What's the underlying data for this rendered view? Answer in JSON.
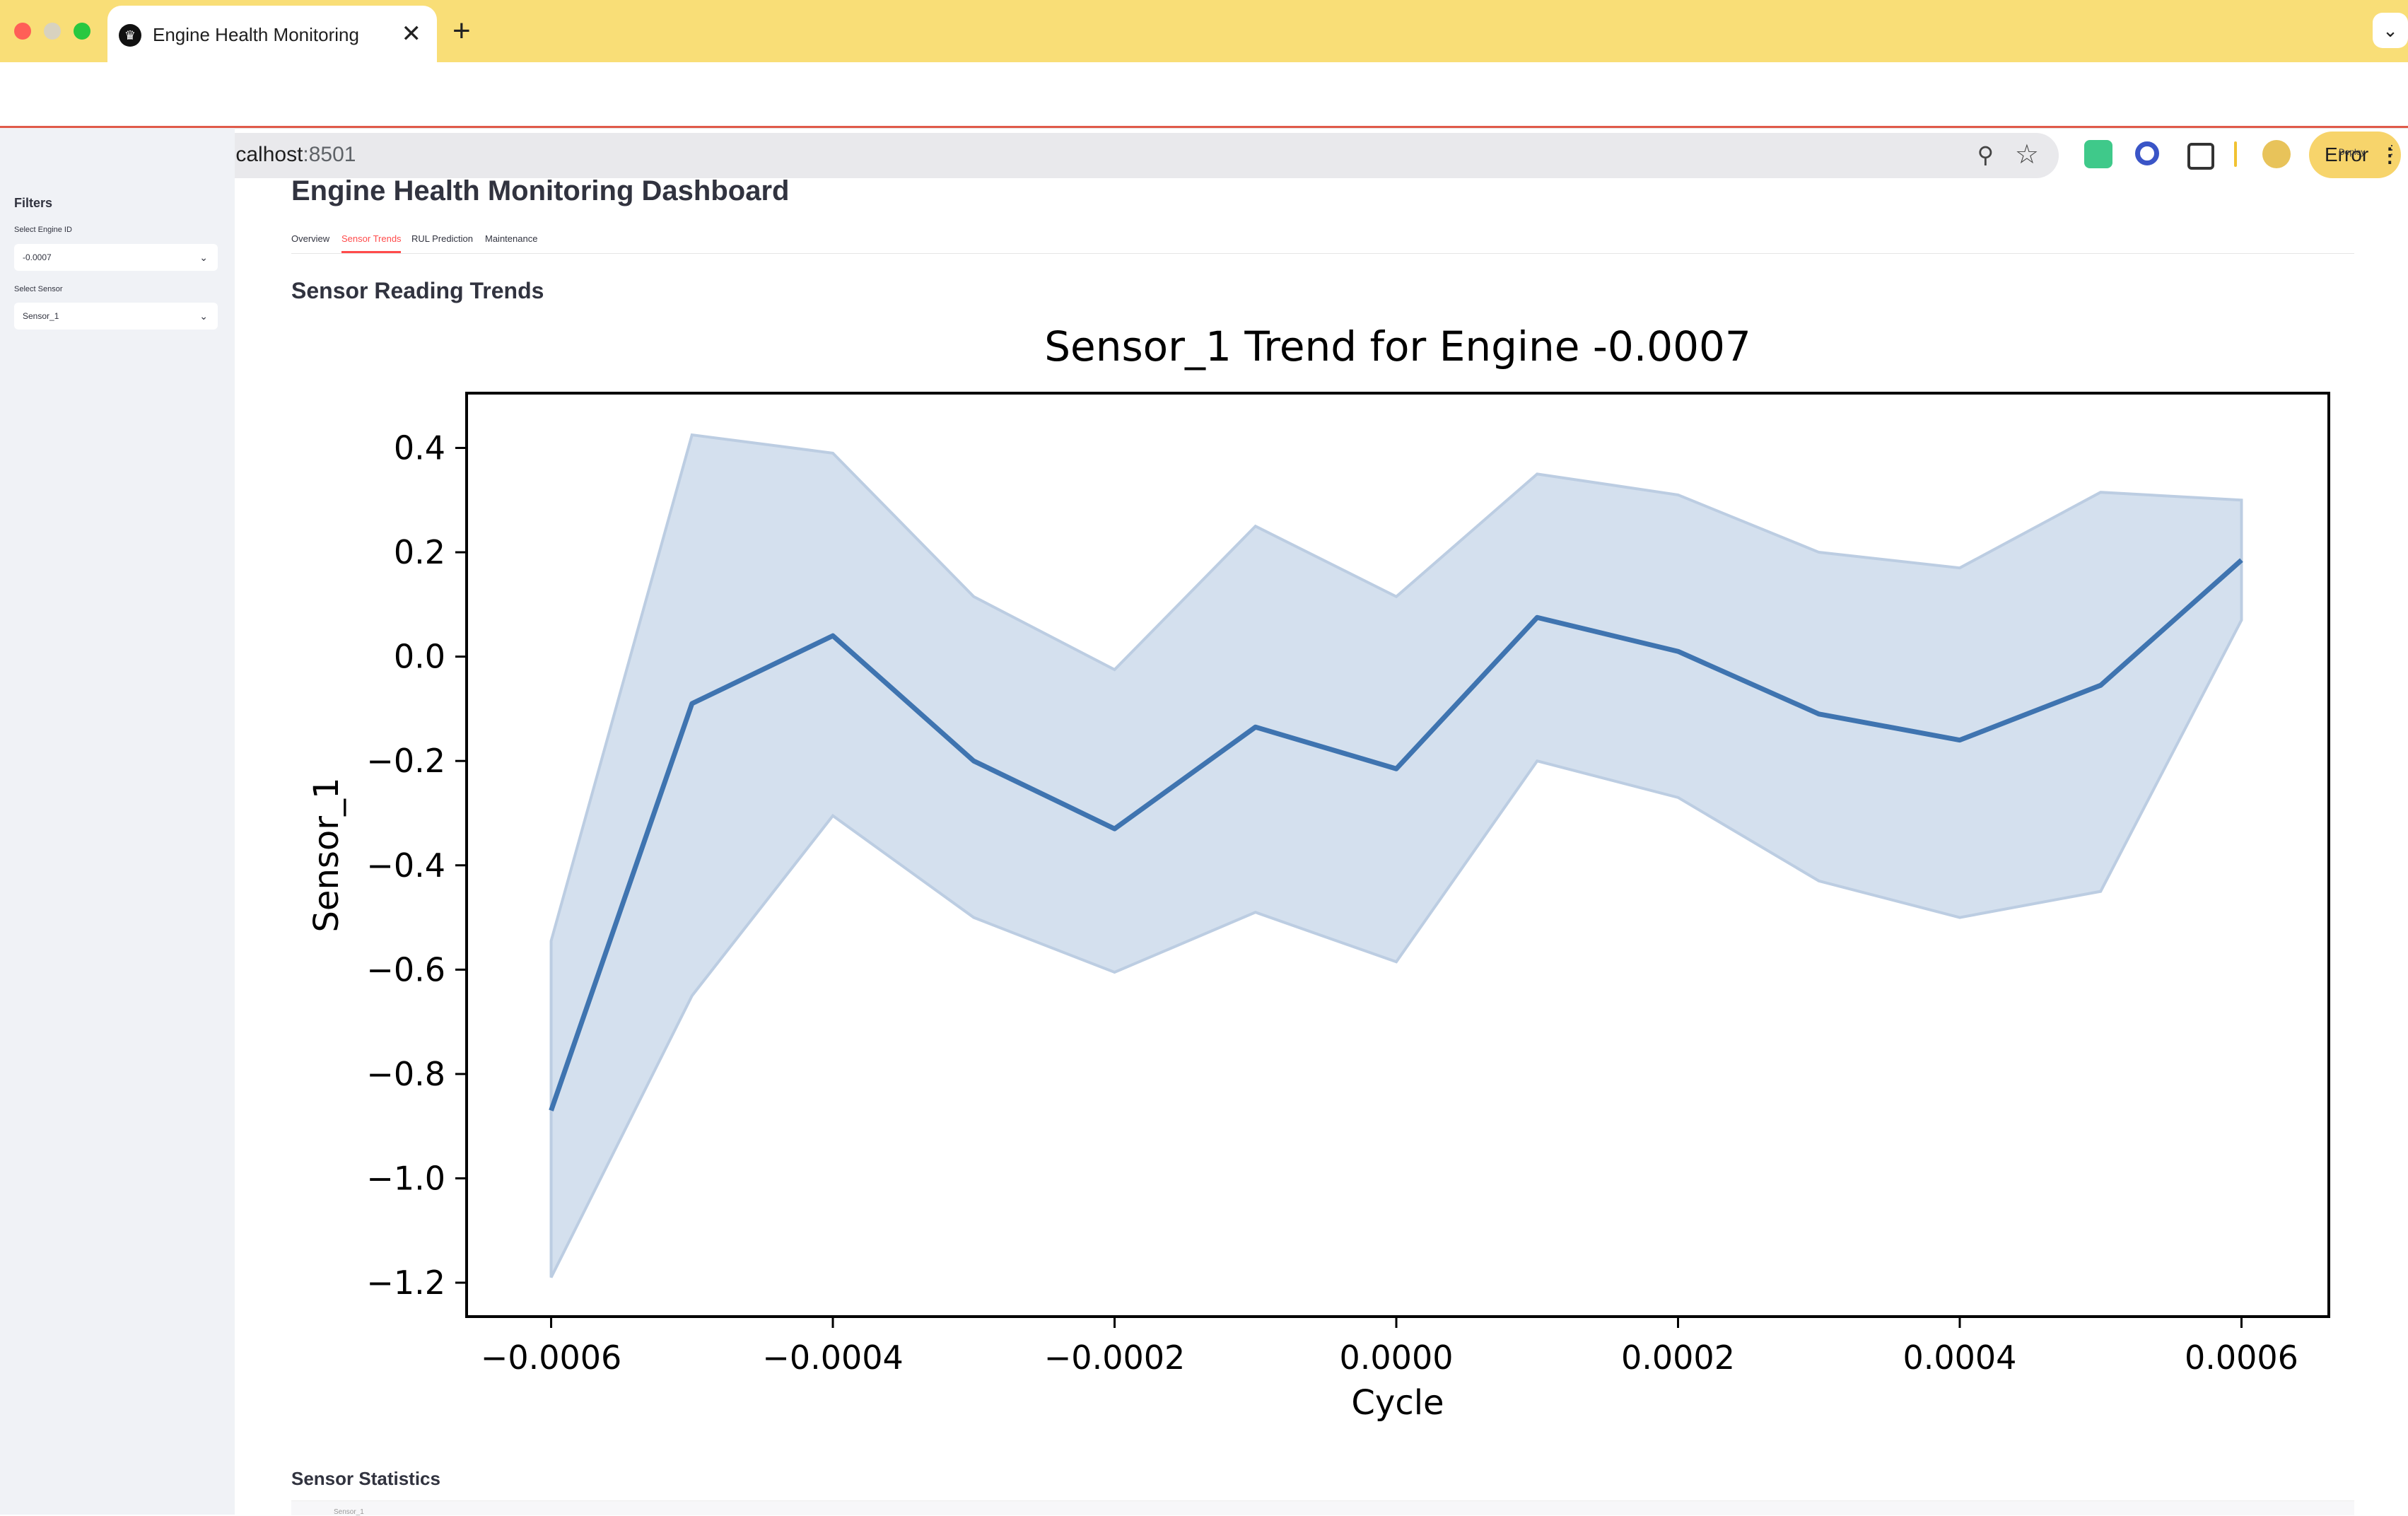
{
  "browser": {
    "tab_title": "Engine Health Monitoring",
    "url_host": "localhost",
    "url_port": ":8501",
    "error_label": "Error",
    "colors": {
      "tabbar": "#f9de77",
      "error_button": "#f7d46b"
    }
  },
  "header": {
    "deploy_label": "Deploy"
  },
  "sidebar": {
    "heading": "Filters",
    "engine_label": "Select Engine ID",
    "engine_value": "-0.0007",
    "sensor_label": "Select Sensor",
    "sensor_value": "Sensor_1"
  },
  "main": {
    "title": "Engine Health Monitoring Dashboard",
    "tabs": [
      {
        "label": "Overview"
      },
      {
        "label": "Sensor Trends"
      },
      {
        "label": "RUL Prediction"
      },
      {
        "label": "Maintenance"
      }
    ],
    "active_tab": "Sensor Trends",
    "section_trends": "Sensor Reading Trends",
    "section_stats": "Sensor Statistics",
    "stats_first_row": "Sensor_1"
  },
  "chart_data": {
    "type": "line",
    "title": "Sensor_1 Trend for Engine -0.0007",
    "xlabel": "Cycle",
    "ylabel": "Sensor_1",
    "x": [
      -0.0006,
      -0.0005,
      -0.0004,
      -0.0003,
      -0.0002,
      -0.0001,
      0.0,
      0.0001,
      0.0002,
      0.0003,
      0.0004,
      0.0005,
      0.0006
    ],
    "series": [
      {
        "values": [
          -0.87,
          -0.09,
          0.04,
          -0.2,
          -0.33,
          -0.135,
          -0.215,
          0.075,
          0.01,
          -0.11,
          -0.16,
          -0.055,
          0.185
        ],
        "lower": [
          -1.19,
          -0.65,
          -0.305,
          -0.5,
          -0.605,
          -0.49,
          -0.585,
          -0.2,
          -0.27,
          -0.43,
          -0.5,
          -0.45,
          0.07
        ],
        "upper": [
          -0.545,
          0.425,
          0.39,
          0.115,
          -0.025,
          0.25,
          0.115,
          0.35,
          0.31,
          0.2,
          0.17,
          0.315,
          0.3
        ]
      }
    ],
    "xticks": [
      -0.0006,
      -0.0004,
      -0.0002,
      0.0,
      0.0002,
      0.0004,
      0.0006
    ],
    "xtick_labels": [
      "−0.0006",
      "−0.0004",
      "−0.0002",
      "0.0000",
      "0.0002",
      "0.0004",
      "0.0006"
    ],
    "yticks": [
      -1.2,
      -1.0,
      -0.8,
      -0.6,
      -0.4,
      -0.2,
      0.0,
      0.2,
      0.4
    ],
    "ytick_labels": [
      "−1.2",
      "−1.0",
      "−0.8",
      "−0.6",
      "−0.4",
      "−0.2",
      "0.0",
      "0.2",
      "0.4"
    ],
    "xlim": [
      -0.00066,
      0.000662
    ],
    "ylim": [
      -1.265,
      0.505
    ],
    "grid": false,
    "colors": {
      "line": "#3f74b0",
      "band": "#d4e0ee",
      "band_edge": "#bccde2"
    }
  }
}
